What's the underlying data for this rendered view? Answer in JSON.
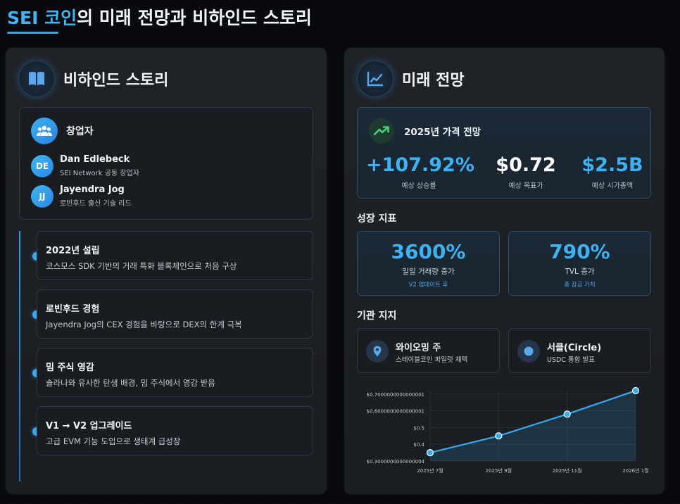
{
  "title": {
    "highlight": "SEI 코인",
    "rest": "의 미래 전망과 비하인드 스토리"
  },
  "left_panel": {
    "title": "비하인드 스토리",
    "icon": "book-icon",
    "founders": {
      "title": "창업자",
      "icon": "users-icon",
      "people": [
        {
          "initials": "DE",
          "name": "Dan Edlebeck",
          "role": "SEI Network 공동 창업자"
        },
        {
          "initials": "JJ",
          "name": "Jayendra Jog",
          "role": "로빈후드 출신 기술 리드"
        }
      ]
    },
    "timeline": [
      {
        "title": "2022년 설립",
        "desc": "코스모스 SDK 기반의 거래 특화 블록체인으로 처음 구상"
      },
      {
        "title": "로빈후드 경험",
        "desc": "Jayendra Jog의 CEX 경험을 바탕으로 DEX의 한계 극복"
      },
      {
        "title": "밈 주식 영감",
        "desc": "솔라나와 유사한 탄생 배경, 밈 주식에서 영감 받음"
      },
      {
        "title": "V1 → V2 업그레이드",
        "desc": "고급 EVM 기능 도입으로 생태계 급성장"
      }
    ]
  },
  "right_panel": {
    "title": "미래 전망",
    "icon": "line-chart-icon",
    "price_forecast": {
      "title": "2025년 가격 전망",
      "icon": "trending-up-icon",
      "metrics": [
        {
          "value": "+107.92%",
          "label": "예상 상승률"
        },
        {
          "value": "$0.72",
          "label": "예상 목표가"
        },
        {
          "value": "$2.5B",
          "label": "예상 시가총액"
        }
      ]
    },
    "growth": {
      "title": "성장 지표",
      "stats": [
        {
          "value": "3600%",
          "label": "일일 거래량 증가",
          "sub": "V2 업데이트 후"
        },
        {
          "value": "790%",
          "label": "TVL 증가",
          "sub": "총 잠금 가치"
        }
      ]
    },
    "institutions": {
      "title": "기관 지지",
      "items": [
        {
          "title": "와이오밍 주",
          "desc": "스테이블코인 파일럿 채택",
          "icon": "location-pin-icon"
        },
        {
          "title": "서클(Circle)",
          "desc": "USDC 통합 발표",
          "icon": "circle-dot-icon"
        }
      ]
    }
  },
  "colors": {
    "accent": "#3fb0f0",
    "line": "#3aa8ee",
    "green": "#4ad07a"
  },
  "chart_data": {
    "type": "area",
    "categories": [
      "2025년 7월",
      "2025년 9월",
      "2025년 11월",
      "2026년 1월"
    ],
    "values": [
      0.35,
      0.45,
      0.58,
      0.72
    ],
    "y_ticks": [
      "0.3000000000000004",
      "0.4",
      "0.5",
      "0.6000000000000001",
      "0.7000000000000001"
    ],
    "y_tick_labels": [
      "$0.3000000000000004",
      "$0.4",
      "$0.5",
      "$0.6000000000000001",
      "$0.7000000000000001"
    ],
    "ylim": [
      0.3,
      0.72
    ],
    "grid": true,
    "xlabel": "",
    "ylabel": "",
    "title": ""
  }
}
